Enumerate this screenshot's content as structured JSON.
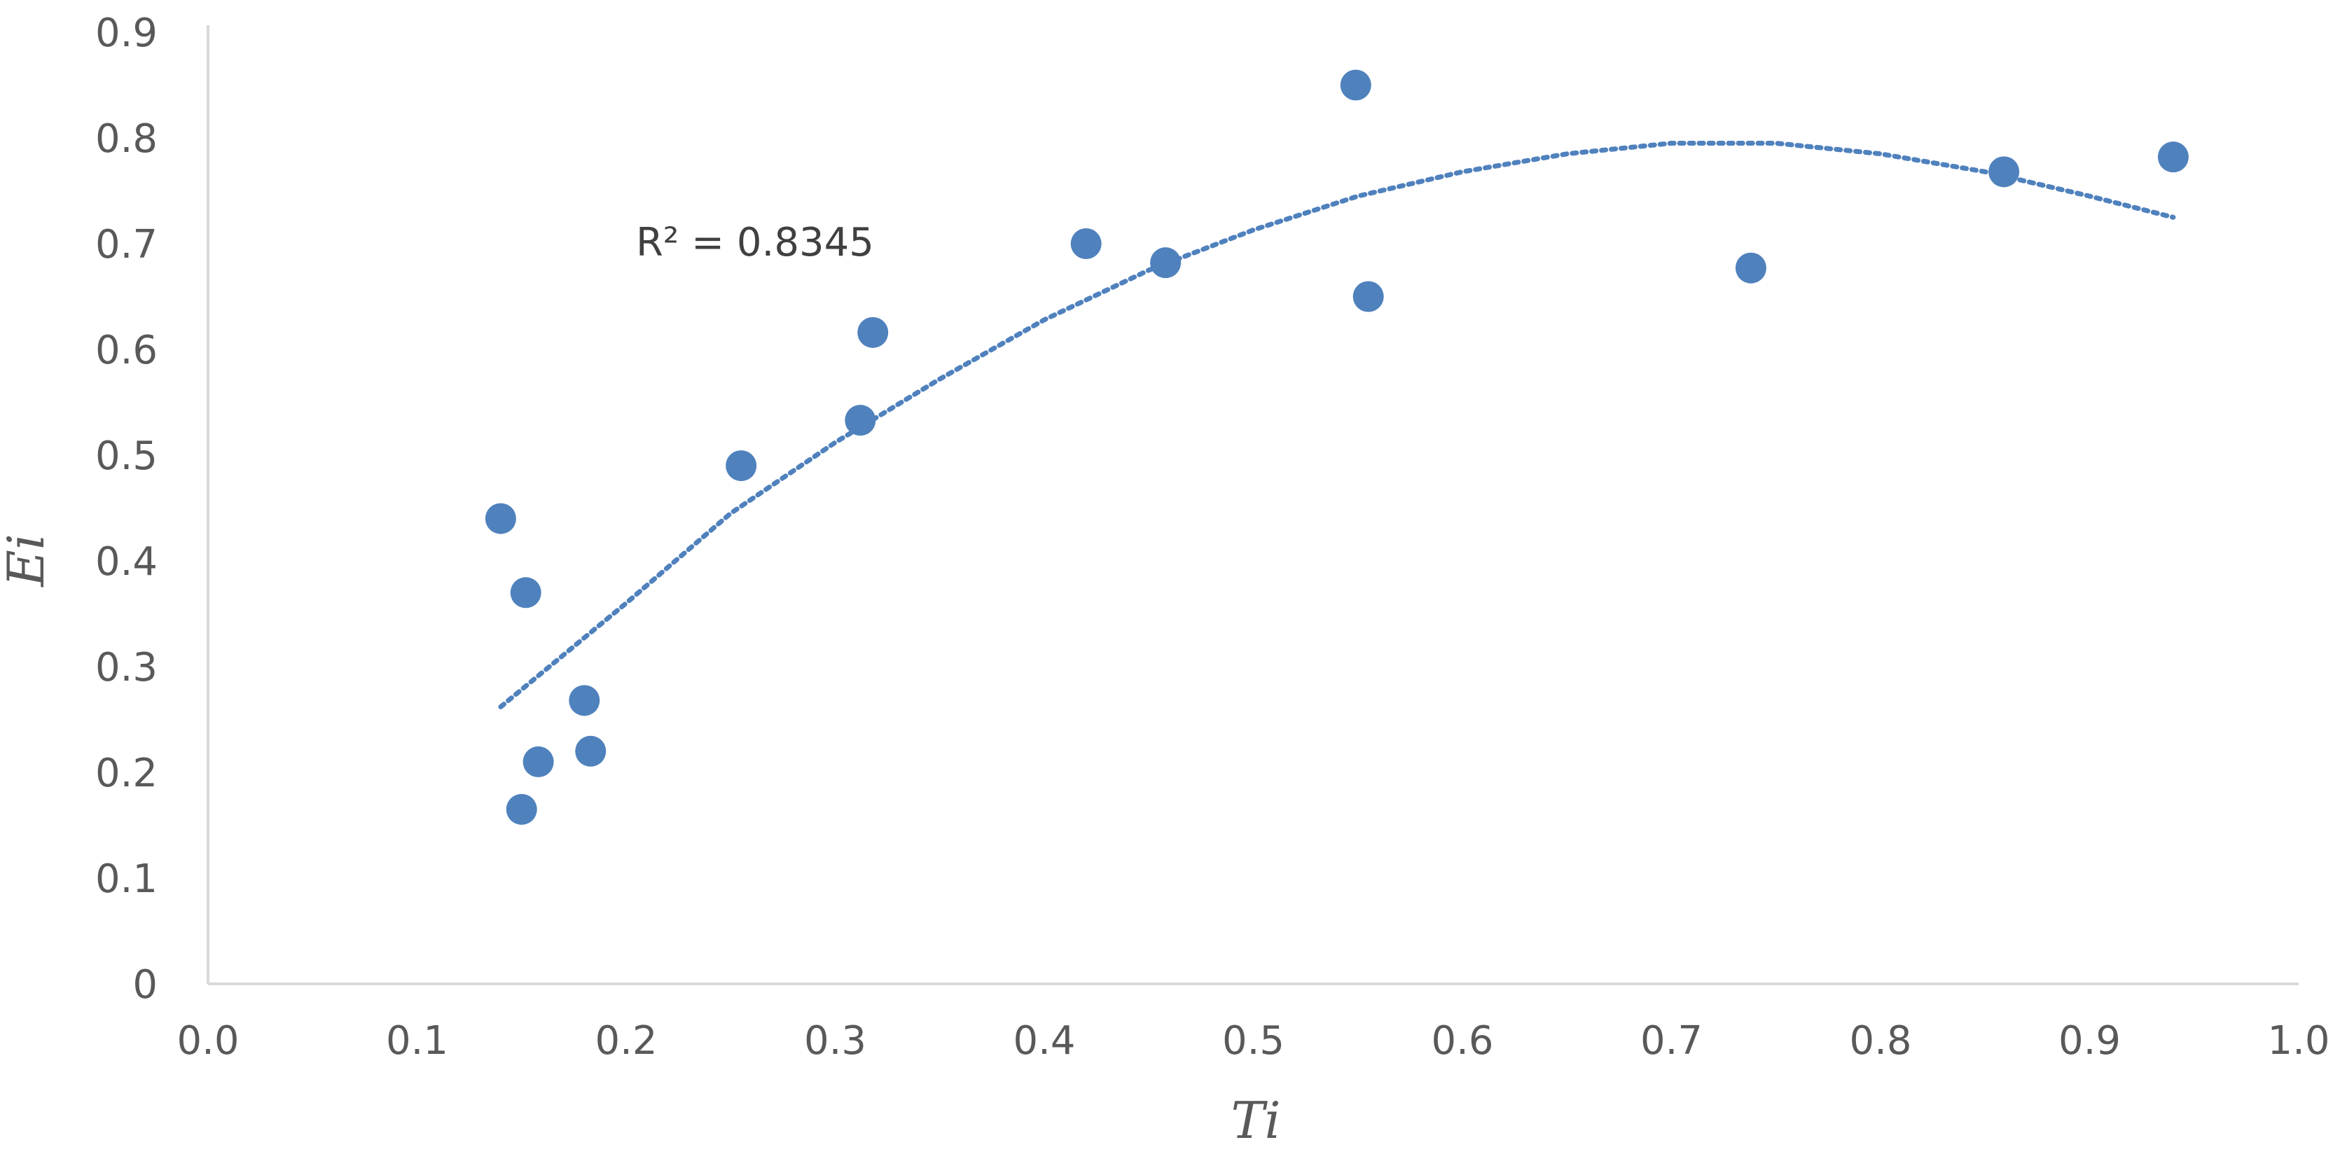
{
  "chart_data": {
    "type": "scatter",
    "title": "",
    "xlabel": "Ti",
    "ylabel": "Ei",
    "xlim": [
      0.0,
      1.0
    ],
    "ylim": [
      0,
      0.9
    ],
    "x_ticks": [
      "0.0",
      "0.1",
      "0.2",
      "0.3",
      "0.4",
      "0.5",
      "0.6",
      "0.7",
      "0.8",
      "0.9",
      "1.0"
    ],
    "y_ticks": [
      "0",
      "0.1",
      "0.2",
      "0.3",
      "0.4",
      "0.5",
      "0.6",
      "0.7",
      "0.8",
      "0.9"
    ],
    "grid": false,
    "legend": "none",
    "marker_color": "#4f81bd",
    "trendline_color": "#4f81bd",
    "series": [
      {
        "points": [
          {
            "x": 0.14,
            "y": 0.44
          },
          {
            "x": 0.152,
            "y": 0.37
          },
          {
            "x": 0.15,
            "y": 0.165
          },
          {
            "x": 0.158,
            "y": 0.21
          },
          {
            "x": 0.18,
            "y": 0.268
          },
          {
            "x": 0.183,
            "y": 0.22
          },
          {
            "x": 0.255,
            "y": 0.49
          },
          {
            "x": 0.312,
            "y": 0.533
          },
          {
            "x": 0.318,
            "y": 0.616
          },
          {
            "x": 0.42,
            "y": 0.7
          },
          {
            "x": 0.458,
            "y": 0.682
          },
          {
            "x": 0.549,
            "y": 0.85
          },
          {
            "x": 0.555,
            "y": 0.65
          },
          {
            "x": 0.738,
            "y": 0.677
          },
          {
            "x": 0.859,
            "y": 0.768
          },
          {
            "x": 0.94,
            "y": 0.782
          }
        ]
      }
    ],
    "trendline": {
      "type": "polynomial-2",
      "r_squared_label": "R² = 0.8345",
      "x_range": [
        0.14,
        0.94
      ],
      "samples": [
        {
          "x": 0.14,
          "y": 0.262
        },
        {
          "x": 0.2,
          "y": 0.36
        },
        {
          "x": 0.25,
          "y": 0.445
        },
        {
          "x": 0.3,
          "y": 0.512
        },
        {
          "x": 0.35,
          "y": 0.572
        },
        {
          "x": 0.4,
          "y": 0.628
        },
        {
          "x": 0.45,
          "y": 0.675
        },
        {
          "x": 0.5,
          "y": 0.713
        },
        {
          "x": 0.55,
          "y": 0.745
        },
        {
          "x": 0.6,
          "y": 0.768
        },
        {
          "x": 0.65,
          "y": 0.785
        },
        {
          "x": 0.7,
          "y": 0.795
        },
        {
          "x": 0.75,
          "y": 0.795
        },
        {
          "x": 0.8,
          "y": 0.785
        },
        {
          "x": 0.85,
          "y": 0.768
        },
        {
          "x": 0.9,
          "y": 0.745
        },
        {
          "x": 0.94,
          "y": 0.725
        }
      ]
    }
  }
}
